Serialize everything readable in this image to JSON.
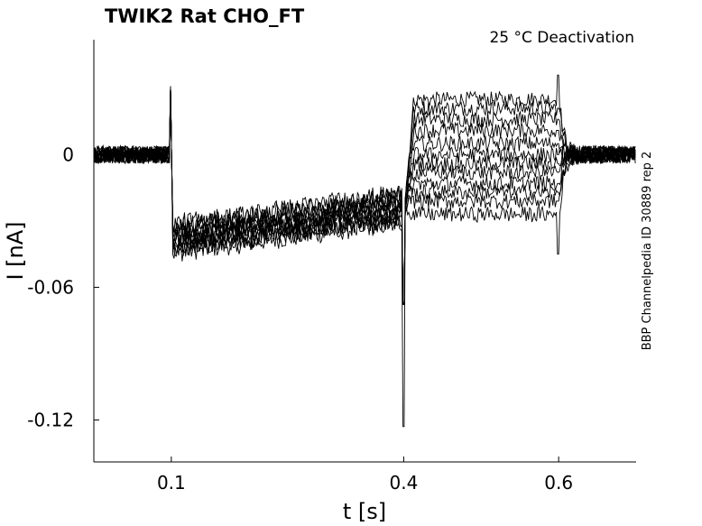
{
  "chart_data": {
    "type": "line",
    "title": "TWIK2  Rat  CHO_FT",
    "subtitle": "25 °C  Deactivation",
    "side_note": "BBP Channelpedia ID 30889 rep 2",
    "xlabel": "t [s]",
    "ylabel": "I [nA]",
    "xlim": [
      0.0,
      0.7
    ],
    "ylim": [
      -0.139,
      0.052
    ],
    "x_ticks": [
      0.1,
      0.4,
      0.6
    ],
    "x_tick_labels": [
      "0.1",
      "0.4",
      "0.6"
    ],
    "y_ticks": [
      0,
      -0.06,
      -0.12
    ],
    "y_tick_labels": [
      "0",
      "-0.06",
      "-0.12"
    ],
    "grid": false,
    "line_color": "#000000",
    "n_sweeps": 12,
    "sweep_steady_levels_after_0_4s": [
      0.025,
      0.021,
      0.016,
      0.011,
      0.005,
      0.0,
      -0.004,
      -0.008,
      -0.013,
      -0.017,
      -0.021,
      -0.027
    ],
    "baseline_level": 0.0,
    "plateau_start_level_at_0_1s": -0.038,
    "plateau_end_level_at_0_4s": -0.024,
    "transient_peak_at_0_1s": 0.031,
    "transient_dip_at_0_4s": -0.123,
    "transient_spike_at_0_6s": 0.036
  }
}
